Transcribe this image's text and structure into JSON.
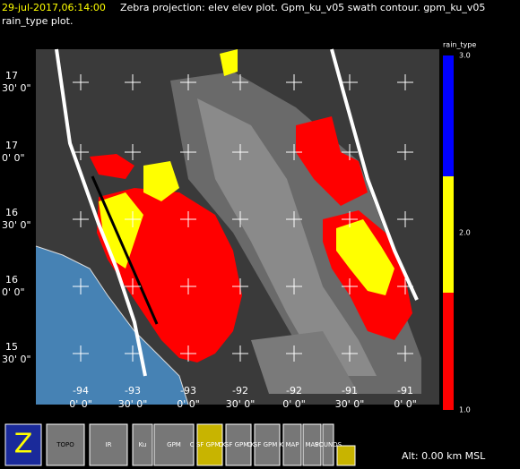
{
  "header": {
    "timestamp": "29-jul-2017,06:14:00",
    "line1": "Zebra projection: elev elev  plot.  Gpm_ku_v05 swath contour.  gpm_ku_v05",
    "line2": "rain_type  plot."
  },
  "colorbar": {
    "title": "rain_type",
    "range": [
      1,
      3
    ],
    "ticks": [
      {
        "value": 3,
        "label": "3.0"
      },
      {
        "value": 2,
        "label": "2.0"
      },
      {
        "value": 1,
        "label": "1.0"
      }
    ]
  },
  "lat_labels": [
    {
      "deg": "17",
      "min": "30' 0\""
    },
    {
      "deg": "17",
      "min": "0' 0\""
    },
    {
      "deg": "16",
      "min": "30' 0\""
    },
    {
      "deg": "16",
      "min": "0' 0\""
    },
    {
      "deg": "15",
      "min": "30' 0\""
    }
  ],
  "lon_labels": [
    {
      "deg": "-94",
      "min": "0' 0\""
    },
    {
      "deg": "-93",
      "min": "30' 0\""
    },
    {
      "deg": "-93",
      "min": "0' 0\""
    },
    {
      "deg": "-92",
      "min": "30' 0\""
    },
    {
      "deg": "-92",
      "min": "0' 0\""
    },
    {
      "deg": "-91",
      "min": "30' 0\""
    },
    {
      "deg": "-91",
      "min": "0' 0\""
    }
  ],
  "buttons": [
    "Z",
    "TOPO",
    "IR",
    "Ku",
    "GPM",
    "C SF GPM Ku",
    "C SF GPM Ku",
    "C SF GPM Ku",
    "MAP",
    "MAP",
    "SOUNDS"
  ],
  "status": "Alt: 0.00 km MSL"
}
